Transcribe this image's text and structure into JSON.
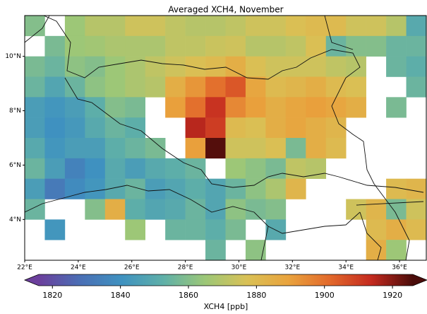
{
  "chart_data": {
    "type": "heatmap",
    "title": "Averaged XCH4, November",
    "x": [
      22.375,
      23.125,
      23.875,
      24.625,
      25.375,
      26.125,
      26.875,
      27.625,
      28.375,
      29.125,
      29.875,
      30.625,
      31.375,
      32.125,
      32.875,
      33.625,
      34.375,
      35.125,
      35.875,
      36.625
    ],
    "y": [
      11.125,
      10.375,
      9.625,
      8.875,
      8.125,
      7.375,
      6.625,
      5.875,
      5.125,
      4.375,
      3.625,
      2.875
    ],
    "values": [
      [
        1860,
        null,
        1865,
        1870,
        1870,
        1875,
        1875,
        1872,
        1870,
        1870,
        1872,
        1875,
        1875,
        1878,
        1880,
        1880,
        1875,
        1875,
        1870,
        1850
      ],
      [
        null,
        1858,
        1865,
        1866,
        1868,
        1868,
        1868,
        1872,
        1872,
        1874,
        1875,
        1870,
        1870,
        1872,
        1878,
        1855,
        1860,
        1860,
        1855,
        1855
      ],
      [
        1858,
        1855,
        1862,
        1860,
        1865,
        1868,
        1872,
        1875,
        1878,
        1880,
        1885,
        1878,
        1875,
        1875,
        1875,
        1872,
        1870,
        null,
        1855,
        1852
      ],
      [
        1855,
        1848,
        1855,
        1862,
        1865,
        1868,
        1870,
        1885,
        1892,
        1900,
        1905,
        1888,
        1880,
        1882,
        1885,
        1880,
        1878,
        null,
        null,
        1855
      ],
      [
        1845,
        1842,
        1845,
        1852,
        1860,
        1858,
        null,
        1890,
        1900,
        1912,
        1895,
        1890,
        1885,
        1888,
        1890,
        1888,
        1885,
        null,
        1858,
        null
      ],
      [
        1845,
        1840,
        1843,
        1850,
        1855,
        1852,
        null,
        null,
        1915,
        1910,
        1880,
        1878,
        1885,
        1888,
        1885,
        1882,
        null,
        null,
        null,
        null
      ],
      [
        1850,
        1842,
        1845,
        1845,
        1852,
        1855,
        1858,
        null,
        1890,
        1925,
        1875,
        1875,
        1878,
        1858,
        1885,
        1880,
        null,
        null,
        null,
        null
      ],
      [
        1855,
        1845,
        1835,
        1840,
        1850,
        1845,
        1850,
        1852,
        1855,
        null,
        1865,
        1862,
        1858,
        1872,
        1870,
        null,
        null,
        null,
        null,
        null
      ],
      [
        1845,
        1832,
        1838,
        1842,
        1850,
        1855,
        1845,
        1848,
        1852,
        1848,
        1855,
        1862,
        1868,
        1882,
        null,
        null,
        null,
        null,
        1880,
        1882
      ],
      [
        1855,
        null,
        null,
        1860,
        1885,
        1852,
        1848,
        1850,
        1855,
        1848,
        1862,
        1858,
        1860,
        null,
        null,
        null,
        1875,
        1882,
        1858,
        1875
      ],
      [
        null,
        1842,
        null,
        null,
        null,
        1865,
        null,
        1855,
        1855,
        1852,
        1858,
        null,
        1850,
        null,
        null,
        null,
        null,
        1880,
        1885,
        1880
      ],
      [
        null,
        null,
        null,
        null,
        null,
        null,
        null,
        null,
        null,
        1855,
        null,
        1862,
        null,
        null,
        null,
        null,
        null,
        1885,
        1865,
        null
      ]
    ],
    "xlim": [
      22,
      37
    ],
    "ylim": [
      2.5,
      11.5
    ],
    "xticks": [
      {
        "value": 22,
        "label": "22°E"
      },
      {
        "value": 24,
        "label": "24°E"
      },
      {
        "value": 26,
        "label": "26°E"
      },
      {
        "value": 28,
        "label": "28°E"
      },
      {
        "value": 30,
        "label": "30°E"
      },
      {
        "value": 32,
        "label": "32°E"
      },
      {
        "value": 34,
        "label": "34°E"
      },
      {
        "value": 36,
        "label": "36°E"
      }
    ],
    "yticks": [
      {
        "value": 4,
        "label": "4°N"
      },
      {
        "value": 6,
        "label": "6°N"
      },
      {
        "value": 8,
        "label": "8°N"
      },
      {
        "value": 10,
        "label": "10°N"
      }
    ],
    "colormap": [
      "#6b3f9c",
      "#4a6fb5",
      "#3f92c0",
      "#5fb0a8",
      "#9cc777",
      "#d9c156",
      "#e9a33d",
      "#e2692b",
      "#c42a1f",
      "#4a0c0a"
    ],
    "colorbar": {
      "lim": [
        1816,
        1926
      ],
      "ticks": [
        1820,
        1840,
        1860,
        1880,
        1900,
        1920
      ],
      "label": "XCH4 [ppb]"
    }
  }
}
